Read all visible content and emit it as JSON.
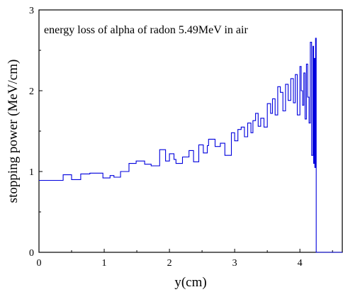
{
  "chart_data": {
    "type": "line",
    "title": "energy loss of alpha of radon 5.49MeV in air",
    "xlabel": "y(cm)",
    "ylabel": "stopping power (MeV/cm)",
    "xlim": [
      0,
      4.65
    ],
    "ylim": [
      0,
      3
    ],
    "xticks": [
      "0",
      "1",
      "2",
      "3",
      "4"
    ],
    "yticks": [
      "0",
      "1",
      "2",
      "3"
    ],
    "grid": false,
    "series": [
      {
        "color": "#0000dd",
        "step": true,
        "x": [
          0.0,
          0.37,
          0.5,
          0.64,
          0.78,
          0.98,
          1.09,
          1.15,
          1.25,
          1.38,
          1.49,
          1.62,
          1.72,
          1.85,
          1.94,
          2.0,
          2.07,
          2.1,
          2.2,
          2.3,
          2.37,
          2.45,
          2.52,
          2.58,
          2.6,
          2.7,
          2.78,
          2.85,
          2.95,
          3.0,
          3.05,
          3.1,
          3.15,
          3.2,
          3.25,
          3.28,
          3.32,
          3.36,
          3.4,
          3.45,
          3.5,
          3.55,
          3.58,
          3.62,
          3.66,
          3.7,
          3.74,
          3.78,
          3.82,
          3.86,
          3.9,
          3.93,
          3.96,
          4.0,
          4.02,
          4.04,
          4.06,
          4.08,
          4.1,
          4.12,
          4.14,
          4.16,
          4.18,
          4.2,
          4.21,
          4.22,
          4.23,
          4.24,
          4.25,
          4.65
        ],
        "y": [
          0.89,
          0.96,
          0.9,
          0.97,
          0.98,
          0.92,
          0.95,
          0.93,
          1.0,
          1.1,
          1.13,
          1.09,
          1.07,
          1.27,
          1.13,
          1.22,
          1.15,
          1.1,
          1.18,
          1.26,
          1.12,
          1.33,
          1.23,
          1.32,
          1.4,
          1.31,
          1.35,
          1.2,
          1.48,
          1.38,
          1.52,
          1.55,
          1.43,
          1.6,
          1.48,
          1.63,
          1.72,
          1.56,
          1.66,
          1.55,
          1.84,
          1.72,
          1.9,
          1.7,
          2.05,
          1.98,
          1.75,
          2.08,
          1.88,
          2.15,
          1.85,
          2.2,
          1.7,
          2.3,
          2.0,
          1.82,
          2.22,
          1.65,
          2.33,
          1.92,
          1.6,
          2.6,
          1.2,
          2.55,
          1.1,
          2.4,
          1.05,
          2.65,
          0.0,
          0.0
        ]
      }
    ]
  }
}
